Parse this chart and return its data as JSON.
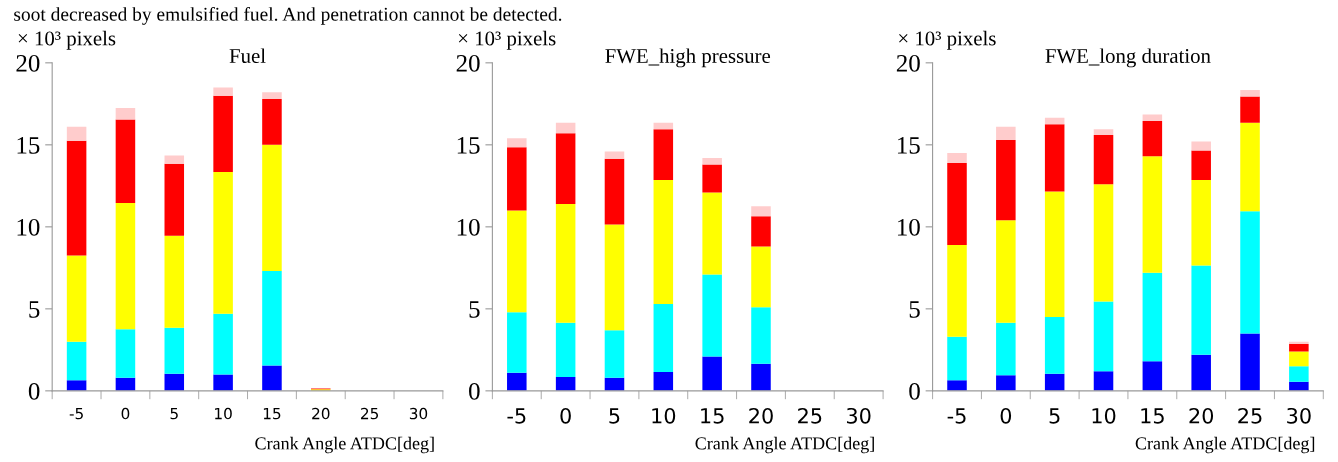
{
  "chart_data": [
    {
      "type": "bar",
      "stacked": true,
      "title": "Fuel",
      "ylabel": "× 10³ pixels",
      "xlabel": "Crank Angle ATDC[deg]",
      "annotations": [
        "soot decreased by emulsified fuel. And penetration cannot be detected."
      ],
      "categories": [
        "-5",
        "0",
        "5",
        "10",
        "15",
        "20",
        "25",
        "30"
      ],
      "ylim": [
        0,
        20
      ],
      "yticks": [
        0,
        5,
        10,
        15,
        20
      ],
      "grid": false,
      "legend": false,
      "series": [
        {
          "color": "#0000ff",
          "values": [
            0.65,
            0.8,
            1.05,
            1.0,
            1.55,
            0,
            0,
            0
          ]
        },
        {
          "color": "#00ffff",
          "values": [
            2.35,
            2.95,
            2.8,
            3.7,
            5.75,
            0,
            0,
            0
          ]
        },
        {
          "color": "#ffff00",
          "values": [
            5.25,
            7.7,
            5.6,
            8.65,
            7.7,
            0.1,
            0,
            0
          ]
        },
        {
          "color": "#ff0000",
          "values": [
            7.0,
            5.1,
            4.4,
            4.65,
            2.8,
            0.05,
            0,
            0
          ]
        },
        {
          "color": "#ffcccc",
          "values": [
            0.85,
            0.7,
            0.5,
            0.5,
            0.4,
            0,
            null,
            null
          ]
        }
      ]
    },
    {
      "type": "bar",
      "stacked": true,
      "title": "FWE_high pressure",
      "ylabel": "× 10³ pixels",
      "xlabel": "Crank Angle ATDC[deg]",
      "categories": [
        "-5",
        "0",
        "5",
        "10",
        "15",
        "20",
        "25",
        "30"
      ],
      "ylim": [
        0,
        20
      ],
      "yticks": [
        0,
        5,
        10,
        15,
        20
      ],
      "grid": false,
      "legend": false,
      "series": [
        {
          "color": "#0000ff",
          "values": [
            1.1,
            0.85,
            0.8,
            1.15,
            2.1,
            1.65,
            0,
            0
          ]
        },
        {
          "color": "#00ffff",
          "values": [
            3.7,
            3.3,
            2.9,
            4.15,
            5.0,
            3.45,
            0,
            0
          ]
        },
        {
          "color": "#ffff00",
          "values": [
            6.2,
            7.25,
            6.45,
            7.55,
            5.0,
            3.7,
            0,
            0
          ]
        },
        {
          "color": "#ff0000",
          "values": [
            3.85,
            4.3,
            4.0,
            3.1,
            1.7,
            1.85,
            0,
            0
          ]
        },
        {
          "color": "#ffcccc",
          "values": [
            0.55,
            0.65,
            0.45,
            0.4,
            0.4,
            0.6,
            null,
            null
          ]
        }
      ]
    },
    {
      "type": "bar",
      "stacked": true,
      "title": "FWE_long duration",
      "ylabel": "× 10³ pixels",
      "xlabel": "Crank Angle ATDC[deg]",
      "categories": [
        "-5",
        "0",
        "5",
        "10",
        "15",
        "20",
        "25",
        "30"
      ],
      "ylim": [
        0,
        20
      ],
      "yticks": [
        0,
        5,
        10,
        15,
        20
      ],
      "grid": false,
      "legend": false,
      "series": [
        {
          "color": "#0000ff",
          "values": [
            0.65,
            0.95,
            1.05,
            1.2,
            1.8,
            2.2,
            3.5,
            0.55
          ]
        },
        {
          "color": "#00ffff",
          "values": [
            2.65,
            3.2,
            3.45,
            4.25,
            5.4,
            5.45,
            7.45,
            0.95
          ]
        },
        {
          "color": "#ffff00",
          "values": [
            5.6,
            6.25,
            7.65,
            7.15,
            7.1,
            5.2,
            5.4,
            0.9
          ]
        },
        {
          "color": "#ff0000",
          "values": [
            5.0,
            4.9,
            4.1,
            3.0,
            2.15,
            1.8,
            1.6,
            0.45
          ]
        },
        {
          "color": "#ffcccc",
          "values": [
            0.6,
            0.8,
            0.4,
            0.35,
            0.4,
            0.55,
            0.4,
            0.15
          ]
        }
      ]
    }
  ]
}
